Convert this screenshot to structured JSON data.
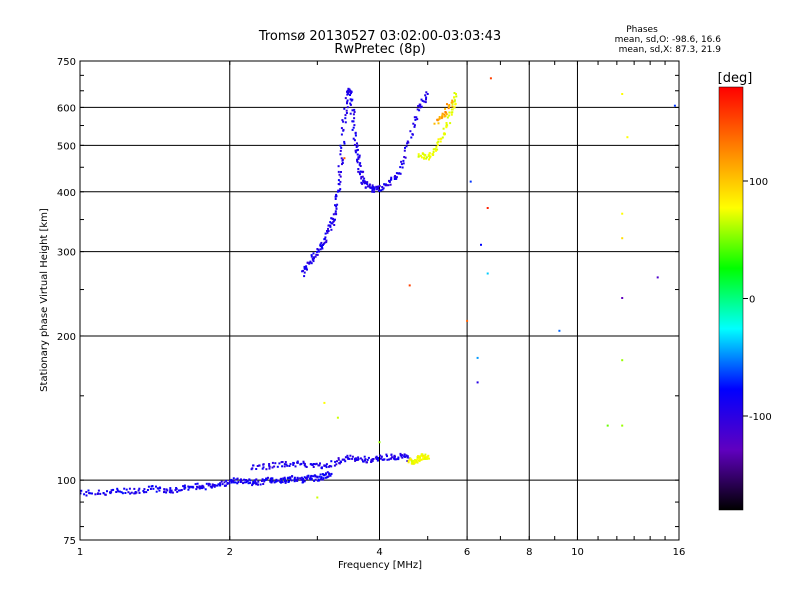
{
  "chart_data": {
    "type": "scatter",
    "title": "Tromsø 20130527 03:02:00-03:03:43",
    "subtitle": "RwPretec (8p)",
    "xlabel": "Frequency [MHz]",
    "ylabel": "Stationary phase Virtual Height [km]",
    "x_scale": "log",
    "y_scale": "log",
    "xlim": [
      1,
      16
    ],
    "ylim": [
      75,
      750
    ],
    "x_ticks": [
      1,
      2,
      4,
      6,
      8,
      10,
      16
    ],
    "x_tick_labels": [
      "1",
      "2",
      "4",
      "6",
      "8",
      "10",
      "16"
    ],
    "y_ticks": [
      75,
      100,
      200,
      300,
      400,
      500,
      600,
      750
    ],
    "y_tick_labels": [
      "75",
      "100",
      "200",
      "300",
      "400",
      "500",
      "600",
      "750"
    ],
    "grid": true,
    "stats": {
      "heading": "Phases",
      "line_o": "mean, sd,O: -98.6, 16.6",
      "line_x": "mean, sd,X:  87.3, 21.9"
    },
    "colorbar": {
      "label": "[deg]",
      "range": [
        -180,
        180
      ],
      "ticks": [
        100,
        0,
        -100
      ],
      "tick_labels": [
        "100",
        "0",
        "-100"
      ],
      "colors": [
        "#ff0000",
        "#ff8000",
        "#ffff00",
        "#00ff00",
        "#00ffff",
        "#0000ff",
        "#6000c0",
        "#000000"
      ]
    },
    "traces": [
      {
        "x": [
          1.0,
          1.1,
          1.2,
          1.3,
          1.4,
          1.5,
          1.6,
          1.7,
          1.8,
          1.9,
          2.0,
          2.1,
          2.2,
          2.3,
          2.4,
          2.5,
          2.6,
          2.7,
          2.8,
          2.9,
          3.0,
          3.1,
          3.2
        ],
        "y": [
          94,
          94,
          95,
          95,
          96,
          95,
          96,
          97,
          97,
          98,
          99,
          100,
          99,
          99,
          100,
          100,
          100,
          101,
          100,
          101,
          101,
          102,
          103
        ],
        "phase": -110
      },
      {
        "x": [
          2.2,
          2.4,
          2.6,
          2.8,
          3.0,
          3.2,
          3.4,
          3.6,
          3.8,
          4.0,
          4.2,
          4.4,
          4.6
        ],
        "y": [
          106,
          107,
          108,
          108,
          107,
          108,
          111,
          111,
          110,
          111,
          112,
          112,
          111
        ],
        "phase": -115
      },
      {
        "x": [
          4.6,
          4.7,
          4.8,
          4.9,
          5.0
        ],
        "y": [
          110,
          109,
          111,
          112,
          112
        ],
        "phase": 95
      },
      {
        "x": [
          2.8,
          2.9,
          3.0,
          3.1,
          3.2,
          3.25,
          3.3,
          3.35,
          3.4,
          3.45,
          3.5,
          3.55,
          3.6,
          3.65,
          3.7,
          3.8,
          3.9,
          4.0,
          4.2,
          4.4,
          4.6,
          4.8,
          5.0
        ],
        "y": [
          270,
          285,
          300,
          315,
          340,
          360,
          400,
          460,
          560,
          650,
          640,
          560,
          490,
          450,
          420,
          410,
          405,
          405,
          420,
          440,
          510,
          600,
          640
        ],
        "phase": -115
      },
      {
        "x": [
          4.8,
          5.0,
          5.2,
          5.4,
          5.6,
          5.7
        ],
        "y": [
          480,
          470,
          490,
          530,
          590,
          640
        ],
        "phase": 90
      },
      {
        "x": [
          5.2,
          5.4,
          5.6
        ],
        "y": [
          560,
          580,
          620
        ],
        "phase": 130
      }
    ],
    "scattered_points": [
      {
        "x": 6.1,
        "y": 420,
        "phase": -90
      },
      {
        "x": 6.6,
        "y": 370,
        "phase": 170
      },
      {
        "x": 6.6,
        "y": 270,
        "phase": -60
      },
      {
        "x": 6.4,
        "y": 310,
        "phase": -100
      },
      {
        "x": 6.0,
        "y": 215,
        "phase": 150
      },
      {
        "x": 6.3,
        "y": 180,
        "phase": -70
      },
      {
        "x": 6.3,
        "y": 160,
        "phase": -120
      },
      {
        "x": 6.7,
        "y": 690,
        "phase": 160
      },
      {
        "x": 9.2,
        "y": 205,
        "phase": -80
      },
      {
        "x": 11.5,
        "y": 130,
        "phase": 40
      },
      {
        "x": 12.3,
        "y": 130,
        "phase": 60
      },
      {
        "x": 12.3,
        "y": 178,
        "phase": 60
      },
      {
        "x": 12.3,
        "y": 240,
        "phase": -150
      },
      {
        "x": 12.3,
        "y": 320,
        "phase": 110
      },
      {
        "x": 12.3,
        "y": 360,
        "phase": 100
      },
      {
        "x": 12.3,
        "y": 640,
        "phase": 100
      },
      {
        "x": 12.6,
        "y": 520,
        "phase": 100
      },
      {
        "x": 14.5,
        "y": 265,
        "phase": -140
      },
      {
        "x": 15.7,
        "y": 605,
        "phase": -90
      },
      {
        "x": 3.1,
        "y": 145,
        "phase": 100
      },
      {
        "x": 3.3,
        "y": 135,
        "phase": 80
      },
      {
        "x": 4.0,
        "y": 120,
        "phase": 60
      },
      {
        "x": 4.6,
        "y": 255,
        "phase": 160
      },
      {
        "x": 3.4,
        "y": 470,
        "phase": 150
      },
      {
        "x": 3.0,
        "y": 92,
        "phase": 80
      }
    ]
  }
}
